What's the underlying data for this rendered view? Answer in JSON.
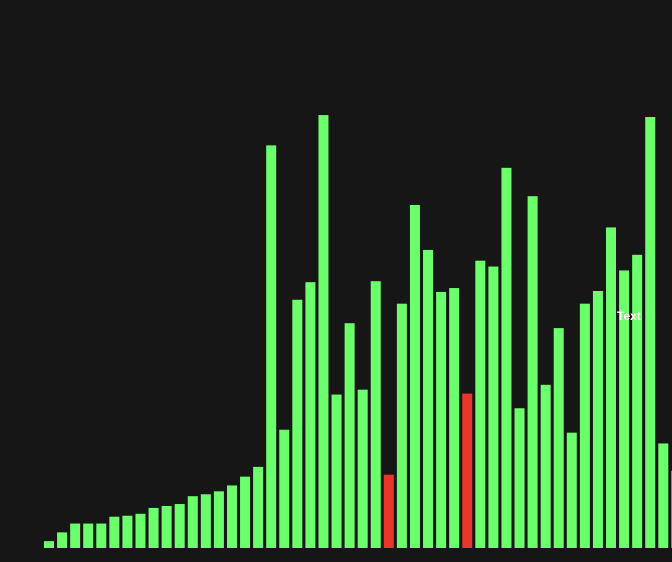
{
  "app": {
    "background": "#161616"
  },
  "chart_data": {
    "type": "bar",
    "title": "",
    "xlabel": "",
    "ylabel": "",
    "grid": false,
    "legend": "none",
    "ylim": [
      0,
      440
    ],
    "colors": {
      "default": "#6cff6c",
      "highlight": "#e8372a"
    },
    "values": [
      7,
      16,
      25,
      25,
      25,
      32,
      33,
      35,
      41,
      43,
      45,
      53,
      55,
      58,
      64,
      73,
      83,
      412,
      121,
      254,
      272,
      443,
      157,
      230,
      162,
      273,
      75,
      250,
      351,
      305,
      262,
      266,
      158,
      294,
      288,
      389,
      143,
      360,
      167,
      225,
      118,
      250,
      263,
      328,
      284,
      300,
      441,
      107,
      79
    ],
    "highlighted_indices": [
      26,
      32
    ],
    "annotations": [
      {
        "text": "Text",
        "bar_index": 45
      }
    ]
  }
}
